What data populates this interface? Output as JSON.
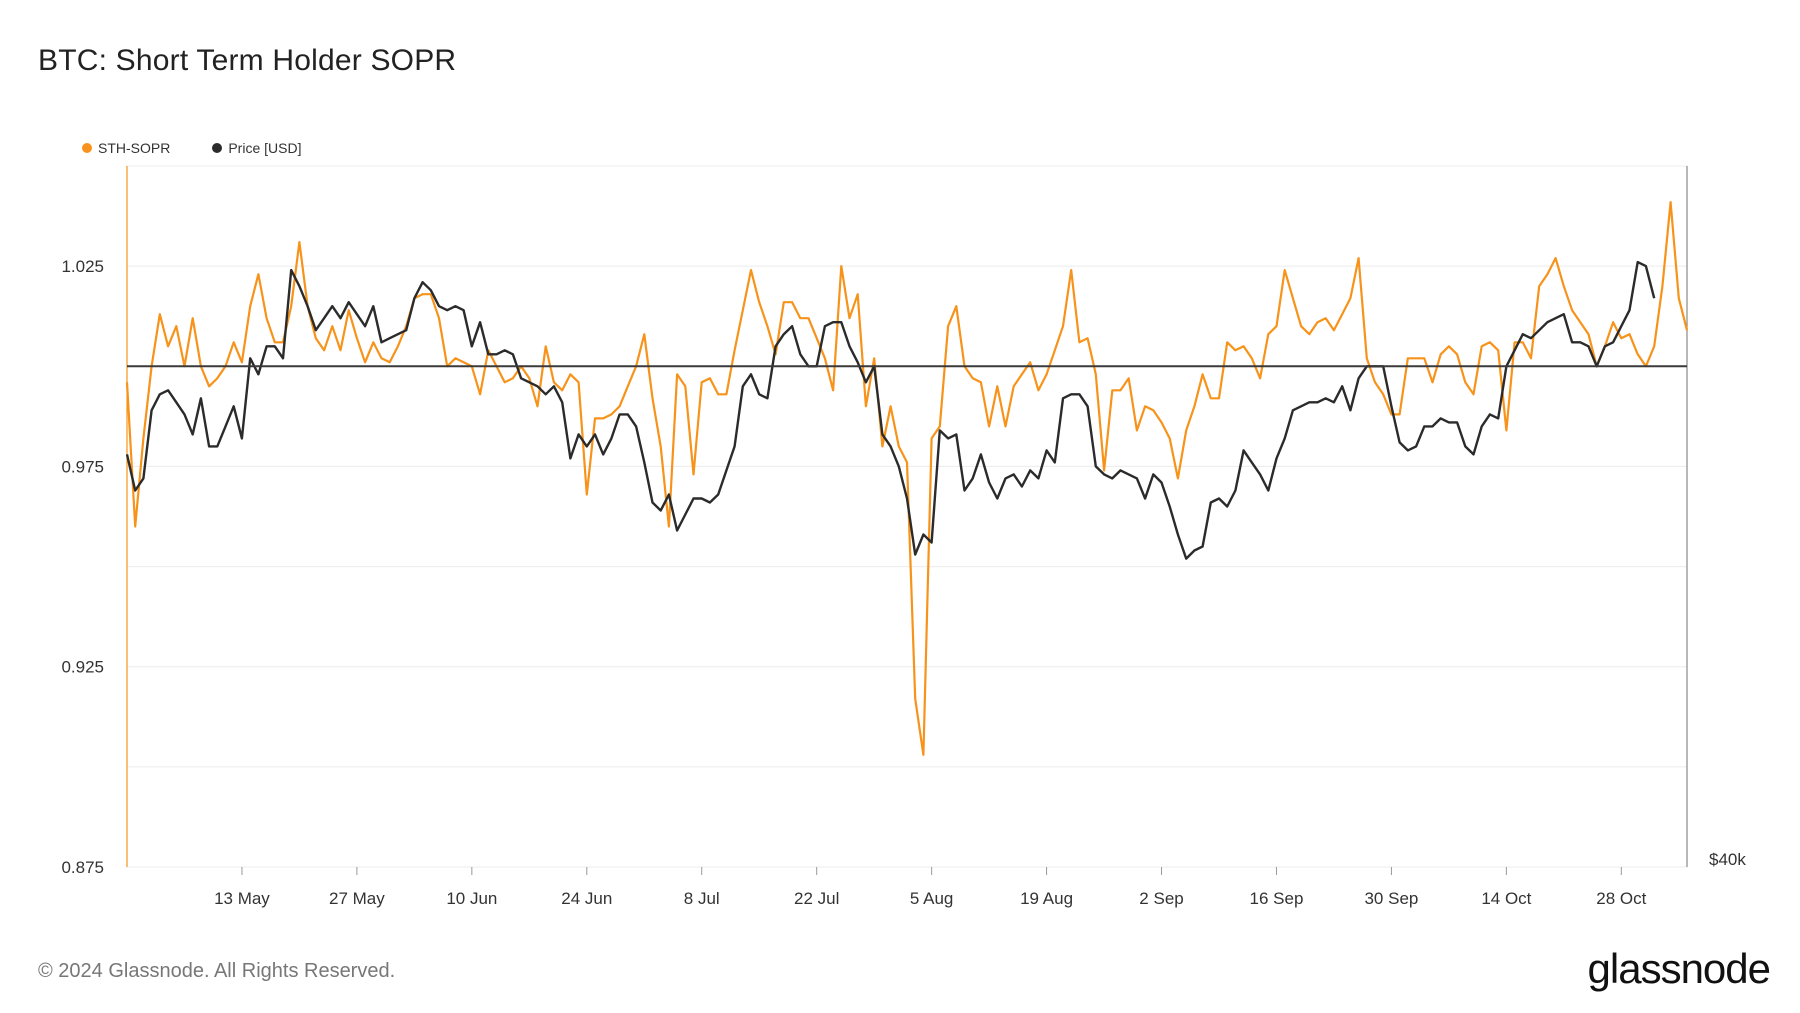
{
  "title": "BTC: Short Term Holder SOPR",
  "legend": [
    {
      "label": "STH-SOPR",
      "color": "#f7931a"
    },
    {
      "label": "Price [USD]",
      "color": "#2b2b2b"
    }
  ],
  "footer": "© 2024 Glassnode. All Rights Reserved.",
  "brand": "glassnode",
  "right_axis_label": "$40k",
  "chart_data": {
    "type": "line",
    "title": "BTC: Short Term Holder SOPR",
    "x_start": "2024-04-29",
    "x_ticks": [
      "13 May",
      "27 May",
      "10 Jun",
      "24 Jun",
      "8 Jul",
      "22 Jul",
      "5 Aug",
      "19 Aug",
      "2 Sep",
      "16 Sep",
      "30 Sep",
      "14 Oct",
      "28 Oct"
    ],
    "y_ticks": [
      "1.025",
      "0.975",
      "0.925",
      "0.875"
    ],
    "ylim": [
      0.875,
      1.05
    ],
    "reference_line": 1.0,
    "series": [
      {
        "name": "STH-SOPR",
        "color": "#f7931a",
        "axis": "left",
        "values": [
          0.996,
          0.96,
          0.982,
          1.0,
          1.013,
          1.005,
          1.01,
          1.0,
          1.012,
          1.0,
          0.995,
          0.997,
          1.0,
          1.006,
          1.001,
          1.015,
          1.023,
          1.012,
          1.006,
          1.006,
          1.015,
          1.031,
          1.015,
          1.007,
          1.004,
          1.01,
          1.004,
          1.014,
          1.007,
          1.001,
          1.006,
          1.002,
          1.001,
          1.005,
          1.01,
          1.017,
          1.018,
          1.018,
          1.012,
          1.0,
          1.002,
          1.001,
          1.0,
          0.993,
          1.004,
          1.0,
          0.996,
          0.997,
          1.0,
          0.997,
          0.99,
          1.005,
          0.996,
          0.994,
          0.998,
          0.996,
          0.968,
          0.987,
          0.987,
          0.988,
          0.99,
          0.995,
          1.0,
          1.008,
          0.992,
          0.98,
          0.96,
          0.998,
          0.995,
          0.973,
          0.996,
          0.997,
          0.993,
          0.993,
          1.004,
          1.014,
          1.024,
          1.016,
          1.01,
          1.003,
          1.016,
          1.016,
          1.012,
          1.012,
          1.007,
          1.002,
          0.994,
          1.025,
          1.012,
          1.018,
          0.99,
          1.002,
          0.98,
          0.99,
          0.98,
          0.976,
          0.917,
          0.903,
          0.982,
          0.985,
          1.01,
          1.015,
          1.0,
          0.997,
          0.996,
          0.985,
          0.995,
          0.985,
          0.995,
          0.998,
          1.001,
          0.994,
          0.998,
          1.004,
          1.01,
          1.024,
          1.006,
          1.007,
          0.998,
          0.974,
          0.994,
          0.994,
          0.997,
          0.984,
          0.99,
          0.989,
          0.986,
          0.982,
          0.972,
          0.984,
          0.99,
          0.998,
          0.992,
          0.992,
          1.006,
          1.004,
          1.005,
          1.002,
          0.997,
          1.008,
          1.01,
          1.024,
          1.017,
          1.01,
          1.008,
          1.011,
          1.012,
          1.009,
          1.013,
          1.017,
          1.027,
          1.002,
          0.996,
          0.993,
          0.988,
          0.988,
          1.002,
          1.002,
          1.002,
          0.996,
          1.003,
          1.005,
          1.003,
          0.996,
          0.993,
          1.005,
          1.006,
          1.004,
          0.984,
          1.006,
          1.006,
          1.002,
          1.02,
          1.023,
          1.027,
          1.02,
          1.014,
          1.011,
          1.008,
          1.0,
          1.005,
          1.011,
          1.007,
          1.008,
          1.003,
          1.0,
          1.005,
          1.02,
          1.041,
          1.017,
          1.009
        ]
      },
      {
        "name": "Price [USD]",
        "color": "#2b2b2b",
        "axis": "right",
        "values": [
          0.978,
          0.969,
          0.972,
          0.989,
          0.993,
          0.994,
          0.991,
          0.988,
          0.983,
          0.992,
          0.98,
          0.98,
          0.985,
          0.99,
          0.982,
          1.002,
          0.998,
          1.005,
          1.005,
          1.002,
          1.024,
          1.02,
          1.015,
          1.009,
          1.012,
          1.015,
          1.012,
          1.016,
          1.013,
          1.01,
          1.015,
          1.006,
          1.007,
          1.008,
          1.009,
          1.017,
          1.021,
          1.019,
          1.015,
          1.014,
          1.015,
          1.014,
          1.005,
          1.011,
          1.003,
          1.003,
          1.004,
          1.003,
          0.997,
          0.996,
          0.995,
          0.993,
          0.995,
          0.991,
          0.977,
          0.983,
          0.98,
          0.983,
          0.978,
          0.982,
          0.988,
          0.988,
          0.985,
          0.976,
          0.966,
          0.964,
          0.968,
          0.959,
          0.963,
          0.967,
          0.967,
          0.966,
          0.968,
          0.974,
          0.98,
          0.995,
          0.998,
          0.993,
          0.992,
          1.005,
          1.008,
          1.01,
          1.003,
          1.0,
          1.0,
          1.01,
          1.011,
          1.011,
          1.005,
          1.001,
          0.996,
          1.0,
          0.983,
          0.98,
          0.975,
          0.967,
          0.953,
          0.958,
          0.956,
          0.984,
          0.982,
          0.983,
          0.969,
          0.972,
          0.978,
          0.971,
          0.967,
          0.972,
          0.973,
          0.97,
          0.974,
          0.972,
          0.979,
          0.976,
          0.992,
          0.993,
          0.993,
          0.99,
          0.975,
          0.973,
          0.972,
          0.974,
          0.973,
          0.972,
          0.967,
          0.973,
          0.971,
          0.965,
          0.958,
          0.952,
          0.954,
          0.955,
          0.966,
          0.967,
          0.965,
          0.969,
          0.979,
          0.976,
          0.973,
          0.969,
          0.977,
          0.982,
          0.989,
          0.99,
          0.991,
          0.991,
          0.992,
          0.991,
          0.995,
          0.989,
          0.997,
          1.0,
          1.0,
          1.0,
          0.99,
          0.981,
          0.979,
          0.98,
          0.985,
          0.985,
          0.987,
          0.986,
          0.986,
          0.98,
          0.978,
          0.985,
          0.988,
          0.987,
          1.0,
          1.004,
          1.008,
          1.007,
          1.009,
          1.011,
          1.012,
          1.013,
          1.006,
          1.006,
          1.005,
          1.0,
          1.005,
          1.006,
          1.01,
          1.014,
          1.026,
          1.025,
          1.017
        ]
      }
    ]
  }
}
